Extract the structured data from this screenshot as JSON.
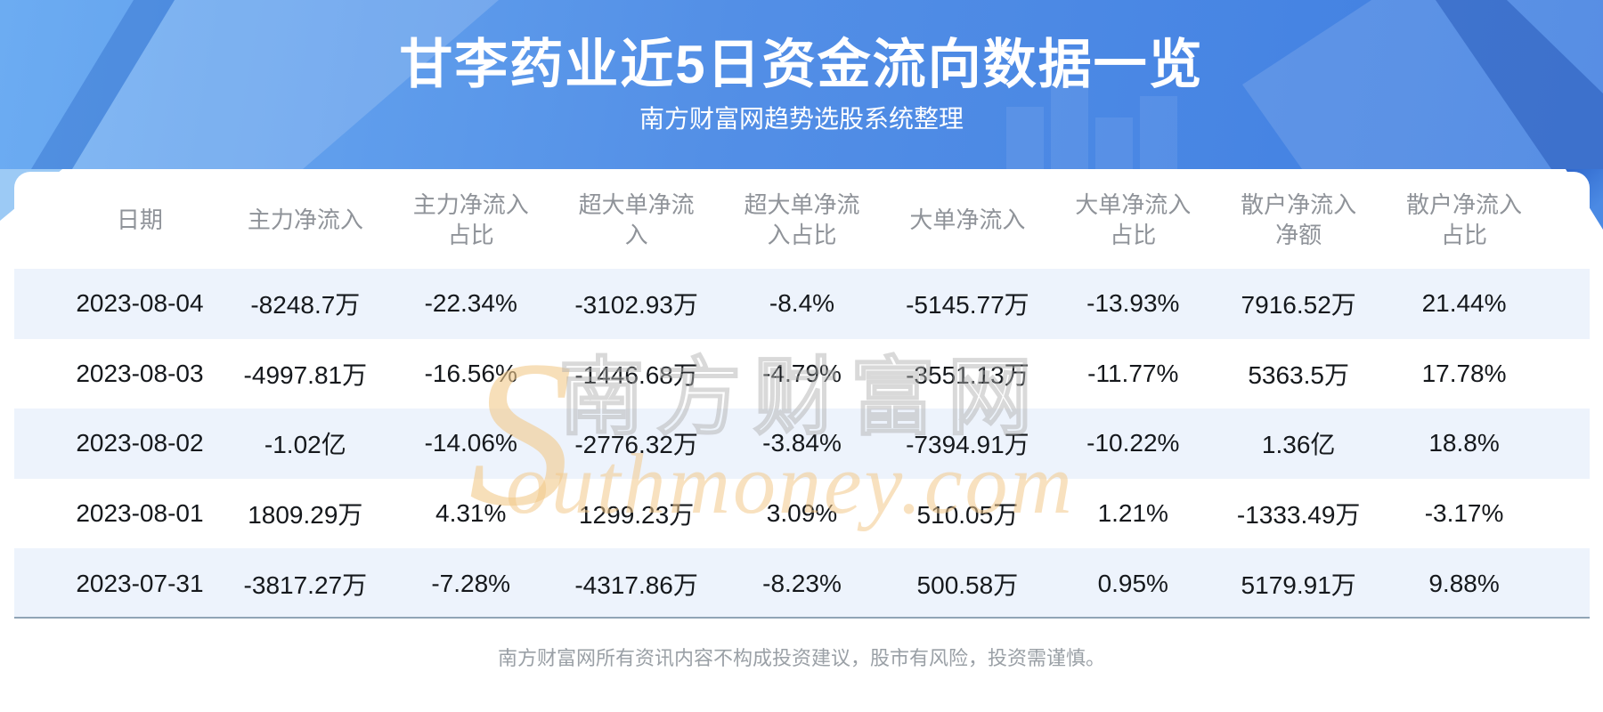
{
  "header": {
    "title": "甘李药业近5日资金流向数据一览",
    "subtitle": "南方财富网趋势选股系统整理"
  },
  "table": {
    "columns": [
      "日期",
      "主力净流入",
      "主力净流入占比",
      "超大单净流入",
      "超大单净流入占比",
      "大单净流入",
      "大单净流入占比",
      "散户净流入净额",
      "散户净流入占比"
    ],
    "rows": [
      [
        "2023-08-04",
        "-8248.7万",
        "-22.34%",
        "-3102.93万",
        "-8.4%",
        "-5145.77万",
        "-13.93%",
        "7916.52万",
        "21.44%"
      ],
      [
        "2023-08-03",
        "-4997.81万",
        "-16.56%",
        "-1446.68万",
        "-4.79%",
        "-3551.13万",
        "-11.77%",
        "5363.5万",
        "17.78%"
      ],
      [
        "2023-08-02",
        "-1.02亿",
        "-14.06%",
        "-2776.32万",
        "-3.84%",
        "-7394.91万",
        "-10.22%",
        "1.36亿",
        "18.8%"
      ],
      [
        "2023-08-01",
        "1809.29万",
        "4.31%",
        "1299.23万",
        "3.09%",
        "510.05万",
        "1.21%",
        "-1333.49万",
        "-3.17%"
      ],
      [
        "2023-07-31",
        "-3817.27万",
        "-7.28%",
        "-4317.86万",
        "-8.23%",
        "500.58万",
        "0.95%",
        "5179.91万",
        "9.88%"
      ]
    ]
  },
  "watermark": {
    "initial": "S",
    "cjk": "南方财富网",
    "script": "outhmoney.com"
  },
  "footer": {
    "disclaimer": "南方财富网所有资讯内容不构成投资建议，股市有风险，投资需谨慎。"
  },
  "colors": {
    "banner_gradient_start": "#6cacf2",
    "banner_gradient_end": "#3f7ee1",
    "alt_row": "#edf3fc",
    "header_text": "#8f9399",
    "data_text": "#15181c",
    "table_bottom_line": "#90a4b6",
    "watermark_tan": "#f2c98b"
  }
}
